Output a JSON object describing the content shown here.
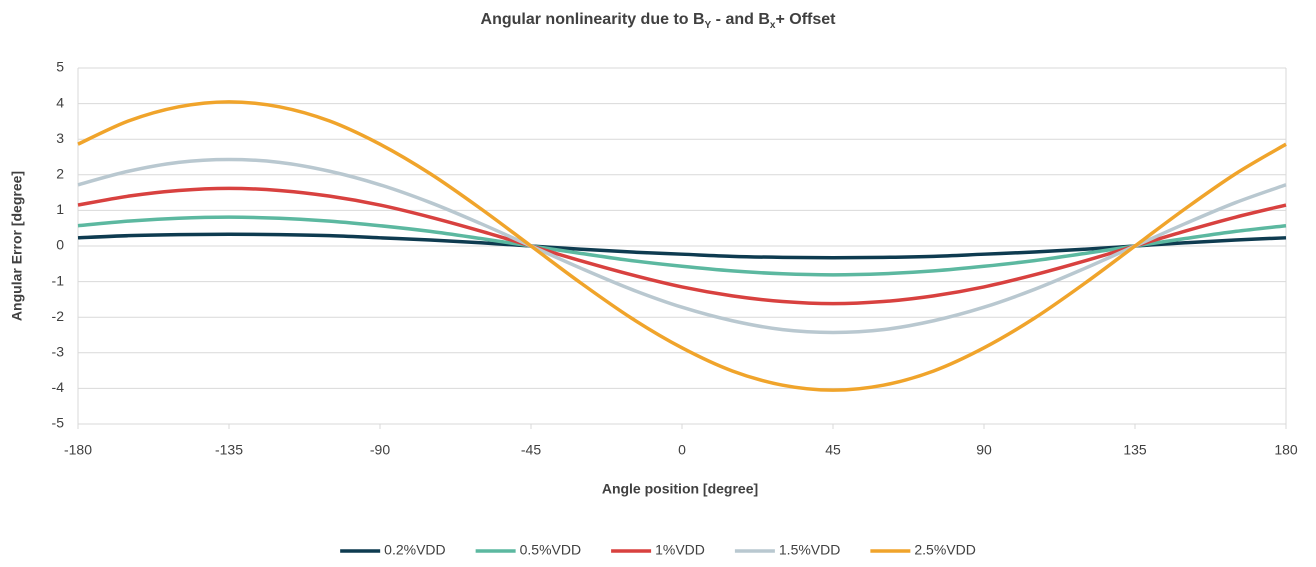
{
  "chart_data": {
    "type": "line",
    "title": [
      "Angular nonlinearity due to B",
      "Y",
      " - and B",
      "x",
      "+ Offset"
    ],
    "xlabel": "Angle position [degree]",
    "ylabel": "Angular Error [degree]",
    "x": [
      -180,
      -165,
      -150,
      -135,
      -120,
      -105,
      -90,
      -75,
      -60,
      -45,
      -30,
      -15,
      0,
      15,
      30,
      45,
      60,
      75,
      90,
      105,
      120,
      135,
      150,
      165,
      180
    ],
    "series": [
      {
        "name": "0.2%VDD",
        "color": "#0e3b50",
        "values": [
          0.23,
          0.29,
          0.32,
          0.33,
          0.32,
          0.29,
          0.23,
          0.17,
          0.09,
          0,
          -0.09,
          -0.17,
          -0.23,
          -0.29,
          -0.32,
          -0.33,
          -0.32,
          -0.29,
          -0.23,
          -0.17,
          -0.09,
          0,
          0.09,
          0.17,
          0.23
        ]
      },
      {
        "name": "0.5%VDD",
        "color": "#5cb8a0",
        "values": [
          0.57,
          0.7,
          0.78,
          0.81,
          0.78,
          0.7,
          0.57,
          0.41,
          0.21,
          0,
          -0.21,
          -0.41,
          -0.57,
          -0.7,
          -0.78,
          -0.81,
          -0.78,
          -0.7,
          -0.57,
          -0.41,
          -0.21,
          0,
          0.21,
          0.41,
          0.57
        ]
      },
      {
        "name": "1%VDD",
        "color": "#d8413f",
        "values": [
          1.15,
          1.4,
          1.56,
          1.62,
          1.56,
          1.4,
          1.15,
          0.81,
          0.42,
          0,
          -0.42,
          -0.81,
          -1.15,
          -1.4,
          -1.56,
          -1.62,
          -1.56,
          -1.4,
          -1.15,
          -0.81,
          -0.42,
          0,
          0.42,
          0.81,
          1.15
        ]
      },
      {
        "name": "1.5%VDD",
        "color": "#b9c8d0",
        "values": [
          1.72,
          2.1,
          2.35,
          2.43,
          2.35,
          2.1,
          1.72,
          1.22,
          0.63,
          0,
          -0.63,
          -1.22,
          -1.72,
          -2.1,
          -2.35,
          -2.43,
          -2.35,
          -2.1,
          -1.72,
          -1.22,
          -0.63,
          0,
          0.63,
          1.22,
          1.72
        ]
      },
      {
        "name": "2.5%VDD",
        "color": "#f0a42b",
        "values": [
          2.86,
          3.51,
          3.91,
          4.05,
          3.91,
          3.51,
          2.86,
          2.03,
          1.05,
          0,
          -1.05,
          -2.03,
          -2.86,
          -3.51,
          -3.91,
          -4.05,
          -3.91,
          -3.51,
          -2.86,
          -2.03,
          -1.05,
          0,
          1.05,
          2.03,
          2.86
        ]
      }
    ],
    "xlim": [
      -180,
      180
    ],
    "xticks": [
      -180,
      -135,
      -90,
      -45,
      0,
      45,
      90,
      135,
      180
    ],
    "ylim": [
      -5,
      5
    ],
    "yticks": [
      -5,
      -4,
      -3,
      -2,
      -1,
      0,
      1,
      2,
      3,
      4,
      5
    ],
    "grid": true,
    "legend": "bottom"
  }
}
